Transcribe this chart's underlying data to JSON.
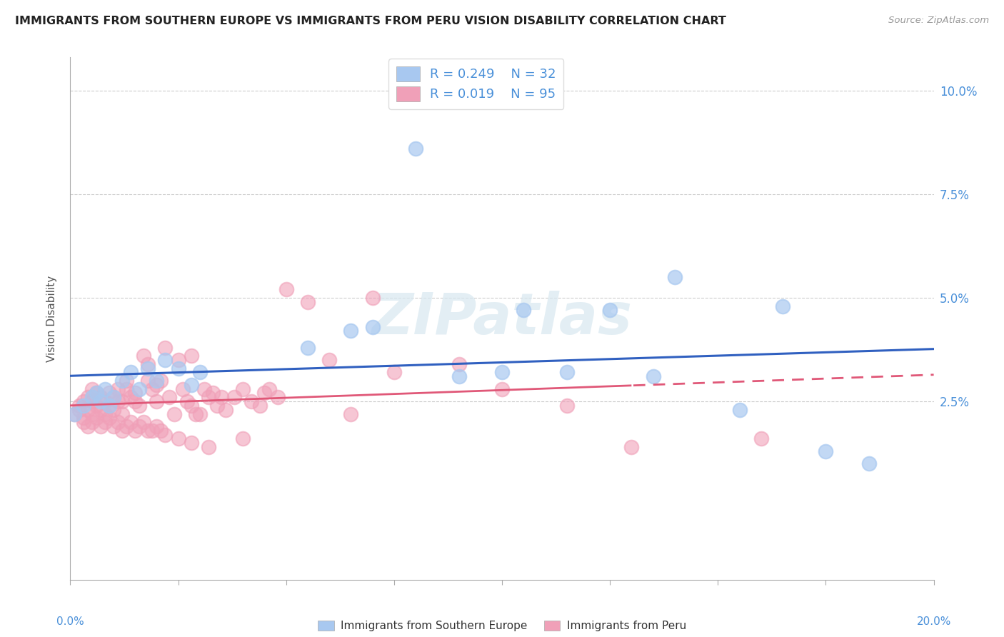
{
  "title": "IMMIGRANTS FROM SOUTHERN EUROPE VS IMMIGRANTS FROM PERU VISION DISABILITY CORRELATION CHART",
  "source": "Source: ZipAtlas.com",
  "ylabel": "Vision Disability",
  "legend1_label": "Immigrants from Southern Europe",
  "legend2_label": "Immigrants from Peru",
  "color_blue": "#a8c8f0",
  "color_pink": "#f0a0b8",
  "color_blue_line": "#3060c0",
  "color_pink_line": "#e05878",
  "color_blue_text": "#4a90d9",
  "watermark": "ZIPatlas",
  "xlim": [
    0.0,
    0.2
  ],
  "ylim": [
    -0.018,
    0.108
  ],
  "yticks": [
    0.025,
    0.05,
    0.075,
    0.1
  ],
  "ytick_labels": [
    "2.5%",
    "5.0%",
    "7.5%",
    "10.0%"
  ],
  "blue_scatter_x": [
    0.001,
    0.003,
    0.005,
    0.006,
    0.007,
    0.008,
    0.009,
    0.01,
    0.012,
    0.014,
    0.016,
    0.018,
    0.02,
    0.022,
    0.025,
    0.028,
    0.03,
    0.055,
    0.065,
    0.07,
    0.08,
    0.09,
    0.1,
    0.105,
    0.115,
    0.125,
    0.135,
    0.14,
    0.155,
    0.165,
    0.175,
    0.185
  ],
  "blue_scatter_y": [
    0.022,
    0.024,
    0.026,
    0.027,
    0.025,
    0.028,
    0.024,
    0.026,
    0.03,
    0.032,
    0.028,
    0.033,
    0.03,
    0.035,
    0.033,
    0.029,
    0.032,
    0.038,
    0.042,
    0.043,
    0.086,
    0.031,
    0.032,
    0.047,
    0.032,
    0.047,
    0.031,
    0.055,
    0.023,
    0.048,
    0.013,
    0.01
  ],
  "pink_scatter_x": [
    0.001,
    0.002,
    0.002,
    0.003,
    0.003,
    0.004,
    0.004,
    0.005,
    0.005,
    0.005,
    0.006,
    0.006,
    0.007,
    0.007,
    0.008,
    0.008,
    0.009,
    0.009,
    0.01,
    0.01,
    0.011,
    0.011,
    0.012,
    0.012,
    0.013,
    0.013,
    0.014,
    0.015,
    0.015,
    0.016,
    0.017,
    0.018,
    0.018,
    0.019,
    0.02,
    0.02,
    0.021,
    0.022,
    0.023,
    0.024,
    0.025,
    0.026,
    0.027,
    0.028,
    0.028,
    0.029,
    0.03,
    0.031,
    0.032,
    0.033,
    0.034,
    0.035,
    0.036,
    0.038,
    0.04,
    0.042,
    0.044,
    0.045,
    0.046,
    0.048,
    0.003,
    0.004,
    0.005,
    0.006,
    0.007,
    0.008,
    0.009,
    0.01,
    0.011,
    0.012,
    0.013,
    0.014,
    0.015,
    0.016,
    0.017,
    0.018,
    0.019,
    0.02,
    0.021,
    0.022,
    0.025,
    0.028,
    0.032,
    0.04,
    0.05,
    0.055,
    0.06,
    0.065,
    0.07,
    0.075,
    0.09,
    0.1,
    0.115,
    0.13,
    0.16
  ],
  "pink_scatter_y": [
    0.022,
    0.024,
    0.023,
    0.025,
    0.021,
    0.023,
    0.026,
    0.022,
    0.025,
    0.028,
    0.024,
    0.027,
    0.023,
    0.026,
    0.022,
    0.025,
    0.024,
    0.027,
    0.023,
    0.026,
    0.025,
    0.028,
    0.022,
    0.025,
    0.03,
    0.028,
    0.026,
    0.025,
    0.027,
    0.024,
    0.036,
    0.034,
    0.03,
    0.028,
    0.029,
    0.025,
    0.03,
    0.038,
    0.026,
    0.022,
    0.035,
    0.028,
    0.025,
    0.024,
    0.036,
    0.022,
    0.022,
    0.028,
    0.026,
    0.027,
    0.024,
    0.026,
    0.023,
    0.026,
    0.028,
    0.025,
    0.024,
    0.027,
    0.028,
    0.026,
    0.02,
    0.019,
    0.02,
    0.021,
    0.019,
    0.02,
    0.021,
    0.019,
    0.02,
    0.018,
    0.019,
    0.02,
    0.018,
    0.019,
    0.02,
    0.018,
    0.018,
    0.019,
    0.018,
    0.017,
    0.016,
    0.015,
    0.014,
    0.016,
    0.052,
    0.049,
    0.035,
    0.022,
    0.05,
    0.032,
    0.034,
    0.028,
    0.024,
    0.014,
    0.016
  ]
}
